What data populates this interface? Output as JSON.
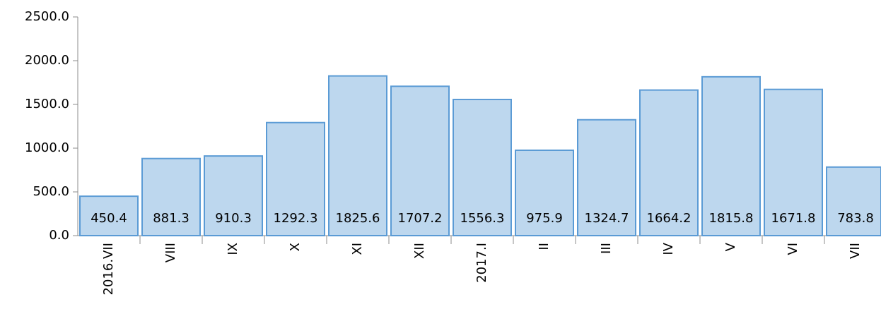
{
  "chart_data": {
    "type": "bar",
    "categories": [
      "2016.VII",
      "VIII",
      "IX",
      "X",
      "XI",
      "XII",
      "2017.I",
      "II",
      "III",
      "IV",
      "V",
      "VI",
      "VII"
    ],
    "values": [
      450.4,
      881.3,
      910.3,
      1292.3,
      1825.6,
      1707.2,
      1556.3,
      975.9,
      1324.7,
      1664.2,
      1815.8,
      1671.8,
      783.8
    ],
    "color": "#bdd7ee",
    "ylim": [
      0,
      2500
    ],
    "yticks": [
      {
        "value": 0,
        "label": "0.0"
      },
      {
        "value": 500,
        "label": "500.0"
      },
      {
        "value": 1000,
        "label": "1000.0"
      },
      {
        "value": 1500,
        "label": "1500.0"
      },
      {
        "value": 2000,
        "label": "2000.0"
      },
      {
        "value": 2500,
        "label": "2500.0"
      }
    ]
  }
}
